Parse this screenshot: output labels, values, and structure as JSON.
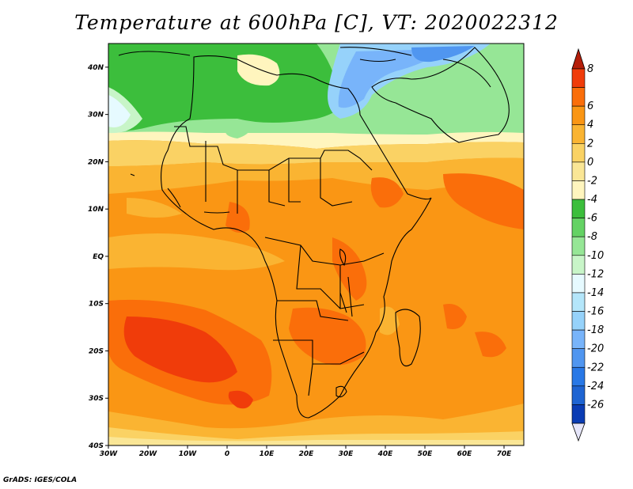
{
  "title": "Temperature at 600hPa [C], VT: 2020022312",
  "credit": "GrADS: IGES/COLA",
  "map": {
    "lon_range": [
      -30,
      75
    ],
    "lat_range": [
      -40,
      45
    ],
    "lon_ticks": [
      {
        "value": -30,
        "label": "30W"
      },
      {
        "value": -20,
        "label": "20W"
      },
      {
        "value": -10,
        "label": "10W"
      },
      {
        "value": 0,
        "label": "0"
      },
      {
        "value": 10,
        "label": "10E"
      },
      {
        "value": 20,
        "label": "20E"
      },
      {
        "value": 30,
        "label": "30E"
      },
      {
        "value": 40,
        "label": "40E"
      },
      {
        "value": 50,
        "label": "50E"
      },
      {
        "value": 60,
        "label": "60E"
      },
      {
        "value": 70,
        "label": "70E"
      }
    ],
    "lat_ticks": [
      {
        "value": 40,
        "label": "40N"
      },
      {
        "value": 30,
        "label": "30N"
      },
      {
        "value": 20,
        "label": "20N"
      },
      {
        "value": 10,
        "label": "10N"
      },
      {
        "value": 0,
        "label": "EQ"
      },
      {
        "value": -10,
        "label": "10S"
      },
      {
        "value": -20,
        "label": "20S"
      },
      {
        "value": -30,
        "label": "30S"
      },
      {
        "value": -40,
        "label": "40S"
      }
    ]
  },
  "colorbar": {
    "labels": [
      "8",
      "6",
      "4",
      "2",
      "0",
      "-2",
      "-4",
      "-6",
      "-8",
      "-10",
      "-12",
      "-14",
      "-16",
      "-18",
      "-20",
      "-22",
      "-24",
      "-26"
    ],
    "colors": [
      "#f03c0a",
      "#fa6e0a",
      "#fa9614",
      "#fab432",
      "#fad264",
      "#fae696",
      "#fff5be",
      "#3cbe3c",
      "#64d264",
      "#96e696",
      "#c8f5c8",
      "#e6faff",
      "#b4e6fa",
      "#96d2fa",
      "#78b4fa",
      "#5096f0",
      "#2878e6",
      "#1e64d2",
      "#0a3cb4"
    ],
    "top_arrow_color": "#b41e0a",
    "bottom_arrow_color": "#e6e6fa"
  }
}
